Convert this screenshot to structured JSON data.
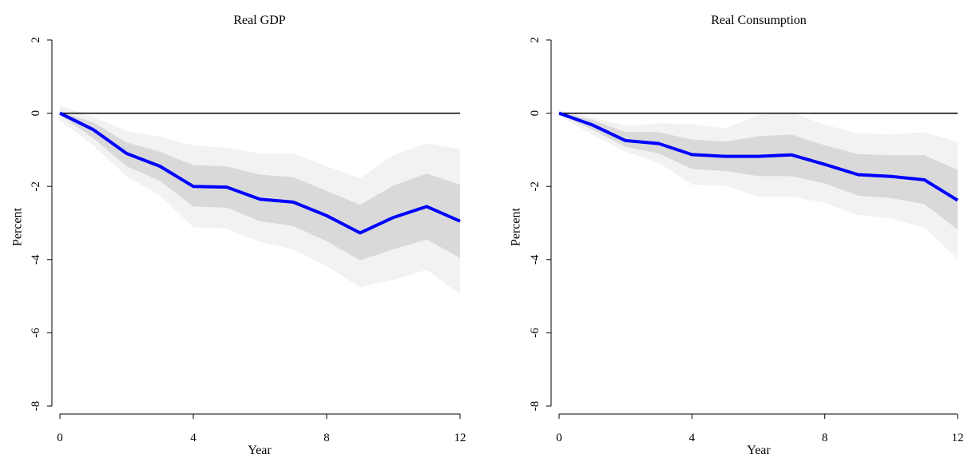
{
  "colors": {
    "line": "#0000ff",
    "band_inner": "#d9d9d9",
    "band_outer": "#f2f2f2",
    "zero_line": "#000000"
  },
  "chart_data": [
    {
      "type": "line",
      "title": "Real GDP",
      "xlabel": "Year",
      "ylabel": "Percent",
      "xlim": [
        0,
        12
      ],
      "ylim": [
        -8,
        2
      ],
      "xticks": [
        0,
        4,
        8,
        12
      ],
      "yticks": [
        2,
        0,
        -2,
        -4,
        -6,
        -8
      ],
      "xtick_labels": [
        "0",
        "4",
        "8",
        "12"
      ],
      "ytick_labels": [
        "2",
        "0",
        "-2",
        "-4",
        "-6",
        "-8"
      ],
      "reference_line": 0,
      "grid": false,
      "x": [
        0,
        1,
        2,
        3,
        4,
        5,
        6,
        7,
        8,
        9,
        10,
        11,
        12
      ],
      "series": [
        {
          "values": [
            0,
            -0.45,
            -1.1,
            -1.45,
            -2.0,
            -2.02,
            -2.35,
            -2.43,
            -2.8,
            -3.27,
            -2.85,
            -2.55,
            -2.95
          ],
          "band_inner_upper": [
            0.05,
            -0.25,
            -0.8,
            -1.05,
            -1.42,
            -1.45,
            -1.68,
            -1.75,
            -2.12,
            -2.5,
            -1.98,
            -1.65,
            -1.95
          ],
          "band_inner_lower": [
            -0.05,
            -0.68,
            -1.45,
            -1.85,
            -2.55,
            -2.58,
            -2.95,
            -3.08,
            -3.5,
            -4.02,
            -3.72,
            -3.45,
            -3.95
          ],
          "band_outer_upper": [
            0.2,
            -0.1,
            -0.48,
            -0.65,
            -0.88,
            -0.95,
            -1.1,
            -1.1,
            -1.45,
            -1.78,
            -1.15,
            -0.82,
            -0.98
          ],
          "band_outer_lower": [
            -0.2,
            -0.88,
            -1.72,
            -2.25,
            -3.12,
            -3.15,
            -3.52,
            -3.72,
            -4.18,
            -4.75,
            -4.55,
            -4.28,
            -4.95
          ]
        }
      ]
    },
    {
      "type": "line",
      "title": "Real Consumption",
      "xlabel": "Year",
      "ylabel": "Percent",
      "xlim": [
        0,
        12
      ],
      "ylim": [
        -8,
        2
      ],
      "xticks": [
        0,
        4,
        8,
        12
      ],
      "yticks": [
        2,
        0,
        -2,
        -4,
        -6,
        -8
      ],
      "xtick_labels": [
        "0",
        "4",
        "8",
        "12"
      ],
      "ytick_labels": [
        "2",
        "0",
        "-2",
        "-4",
        "-6",
        "-8"
      ],
      "reference_line": 0,
      "grid": false,
      "x": [
        0,
        1,
        2,
        3,
        4,
        5,
        6,
        7,
        8,
        9,
        10,
        11,
        12
      ],
      "series": [
        {
          "values": [
            0,
            -0.32,
            -0.75,
            -0.83,
            -1.13,
            -1.18,
            -1.18,
            -1.14,
            -1.4,
            -1.68,
            -1.73,
            -1.82,
            -2.38
          ],
          "band_inner_upper": [
            0.03,
            -0.18,
            -0.52,
            -0.52,
            -0.72,
            -0.78,
            -0.63,
            -0.58,
            -0.88,
            -1.12,
            -1.15,
            -1.15,
            -1.55
          ],
          "band_inner_lower": [
            -0.03,
            -0.45,
            -0.92,
            -1.1,
            -1.52,
            -1.58,
            -1.72,
            -1.72,
            -1.92,
            -2.25,
            -2.32,
            -2.48,
            -3.18
          ],
          "band_outer_upper": [
            0.08,
            -0.1,
            -0.35,
            -0.28,
            -0.3,
            -0.42,
            -0.05,
            0.02,
            -0.32,
            -0.55,
            -0.58,
            -0.52,
            -0.78
          ],
          "band_outer_lower": [
            -0.08,
            -0.58,
            -1.05,
            -1.35,
            -1.95,
            -1.98,
            -2.28,
            -2.28,
            -2.45,
            -2.78,
            -2.88,
            -3.12,
            -3.98
          ]
        }
      ]
    }
  ]
}
